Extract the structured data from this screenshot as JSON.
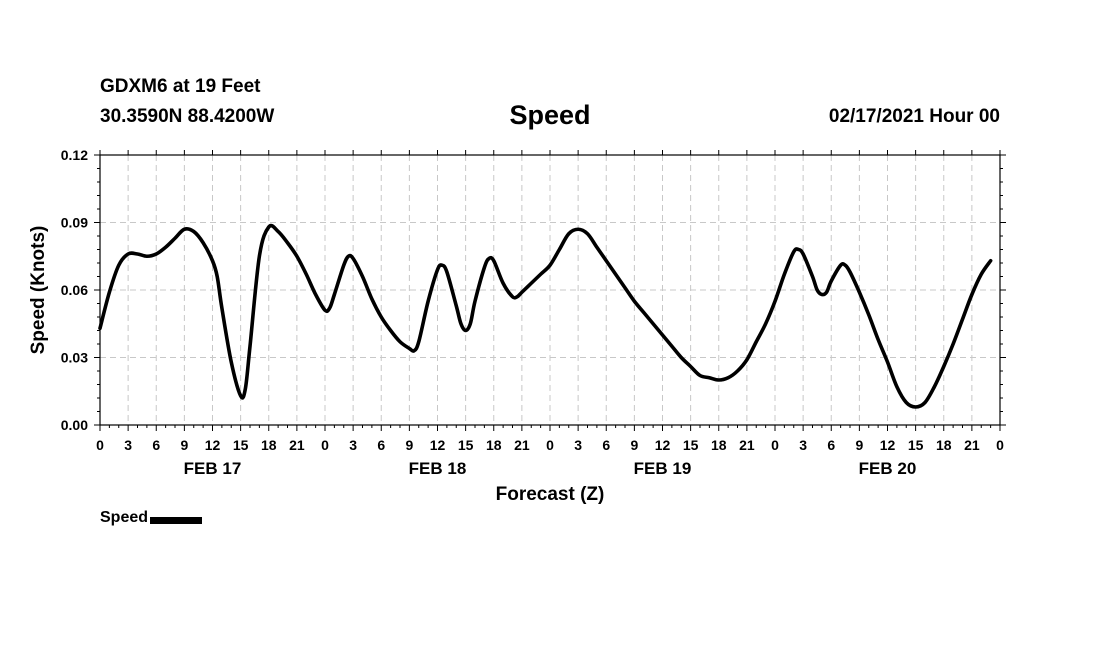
{
  "header": {
    "station": "GDXM6 at 19 Feet",
    "coords": "30.3590N 88.4200W",
    "title": "Speed",
    "datetime": "02/17/2021 Hour 00"
  },
  "chart_data": {
    "type": "line",
    "title": "Speed",
    "xlabel": "Forecast (Z)",
    "ylabel": "Speed (Knots)",
    "xlim": [
      0,
      96
    ],
    "ylim": [
      0,
      0.12
    ],
    "y_ticks": [
      0.0,
      0.03,
      0.06,
      0.09,
      0.12
    ],
    "y_tick_labels": [
      "0.00",
      "0.03",
      "0.06",
      "0.09",
      "0.12"
    ],
    "x_ticks": [
      0,
      3,
      6,
      9,
      12,
      15,
      18,
      21,
      24,
      27,
      30,
      33,
      36,
      39,
      42,
      45,
      48,
      51,
      54,
      57,
      60,
      63,
      66,
      69,
      72,
      75,
      78,
      81,
      84,
      87,
      90,
      93,
      96
    ],
    "x_tick_labels": [
      "0",
      "3",
      "6",
      "9",
      "12",
      "15",
      "18",
      "21",
      "0",
      "3",
      "6",
      "9",
      "12",
      "15",
      "18",
      "21",
      "0",
      "3",
      "6",
      "9",
      "12",
      "15",
      "18",
      "21",
      "0",
      "3",
      "6",
      "9",
      "12",
      "15",
      "18",
      "21",
      "0"
    ],
    "day_labels": [
      {
        "label": "FEB 17",
        "x": 12
      },
      {
        "label": "FEB 18",
        "x": 36
      },
      {
        "label": "FEB 19",
        "x": 60
      },
      {
        "label": "FEB 20",
        "x": 84
      }
    ],
    "grid": true,
    "series": [
      {
        "name": "Speed",
        "color": "#000000",
        "points": [
          [
            0,
            0.043
          ],
          [
            1,
            0.059
          ],
          [
            2,
            0.071
          ],
          [
            3,
            0.076
          ],
          [
            4,
            0.076
          ],
          [
            5,
            0.075
          ],
          [
            6,
            0.076
          ],
          [
            7,
            0.079
          ],
          [
            8,
            0.083
          ],
          [
            9,
            0.087
          ],
          [
            10,
            0.086
          ],
          [
            11,
            0.081
          ],
          [
            12,
            0.073
          ],
          [
            12.5,
            0.066
          ],
          [
            13,
            0.052
          ],
          [
            14,
            0.028
          ],
          [
            15,
            0.013
          ],
          [
            15.5,
            0.016
          ],
          [
            16,
            0.035
          ],
          [
            17,
            0.075
          ],
          [
            18,
            0.088
          ],
          [
            19,
            0.086
          ],
          [
            20,
            0.081
          ],
          [
            21,
            0.075
          ],
          [
            22,
            0.067
          ],
          [
            23,
            0.058
          ],
          [
            24,
            0.051
          ],
          [
            24.5,
            0.052
          ],
          [
            25,
            0.058
          ],
          [
            26,
            0.071
          ],
          [
            26.5,
            0.075
          ],
          [
            27,
            0.074
          ],
          [
            28,
            0.066
          ],
          [
            29,
            0.056
          ],
          [
            30,
            0.048
          ],
          [
            31,
            0.042
          ],
          [
            32,
            0.037
          ],
          [
            33,
            0.034
          ],
          [
            33.5,
            0.033
          ],
          [
            34,
            0.037
          ],
          [
            35,
            0.055
          ],
          [
            36,
            0.069
          ],
          [
            36.5,
            0.071
          ],
          [
            37,
            0.068
          ],
          [
            38,
            0.053
          ],
          [
            38.5,
            0.045
          ],
          [
            39,
            0.042
          ],
          [
            39.5,
            0.045
          ],
          [
            40,
            0.055
          ],
          [
            41,
            0.07
          ],
          [
            41.5,
            0.074
          ],
          [
            42,
            0.073
          ],
          [
            43,
            0.063
          ],
          [
            44,
            0.057
          ],
          [
            44.5,
            0.057
          ],
          [
            45,
            0.059
          ],
          [
            46,
            0.063
          ],
          [
            47,
            0.067
          ],
          [
            48,
            0.071
          ],
          [
            49,
            0.078
          ],
          [
            50,
            0.085
          ],
          [
            51,
            0.087
          ],
          [
            52,
            0.085
          ],
          [
            53,
            0.079
          ],
          [
            54,
            0.073
          ],
          [
            55,
            0.067
          ],
          [
            56,
            0.061
          ],
          [
            57,
            0.055
          ],
          [
            58,
            0.05
          ],
          [
            59,
            0.045
          ],
          [
            60,
            0.04
          ],
          [
            61,
            0.035
          ],
          [
            62,
            0.03
          ],
          [
            63,
            0.026
          ],
          [
            64,
            0.022
          ],
          [
            65,
            0.021
          ],
          [
            66,
            0.02
          ],
          [
            67,
            0.021
          ],
          [
            68,
            0.024
          ],
          [
            69,
            0.029
          ],
          [
            70,
            0.037
          ],
          [
            71,
            0.045
          ],
          [
            72,
            0.055
          ],
          [
            73,
            0.067
          ],
          [
            74,
            0.077
          ],
          [
            74.5,
            0.078
          ],
          [
            75,
            0.076
          ],
          [
            76,
            0.066
          ],
          [
            76.5,
            0.06
          ],
          [
            77,
            0.058
          ],
          [
            77.5,
            0.059
          ],
          [
            78,
            0.064
          ],
          [
            79,
            0.071
          ],
          [
            79.5,
            0.071
          ],
          [
            80,
            0.068
          ],
          [
            81,
            0.059
          ],
          [
            82,
            0.049
          ],
          [
            83,
            0.038
          ],
          [
            84,
            0.028
          ],
          [
            85,
            0.017
          ],
          [
            86,
            0.01
          ],
          [
            87,
            0.008
          ],
          [
            88,
            0.01
          ],
          [
            89,
            0.017
          ],
          [
            90,
            0.026
          ],
          [
            91,
            0.036
          ],
          [
            92,
            0.047
          ],
          [
            93,
            0.058
          ],
          [
            94,
            0.067
          ],
          [
            95,
            0.073
          ]
        ]
      }
    ],
    "legend": {
      "label": "Speed",
      "placement": "bottom-left"
    }
  }
}
